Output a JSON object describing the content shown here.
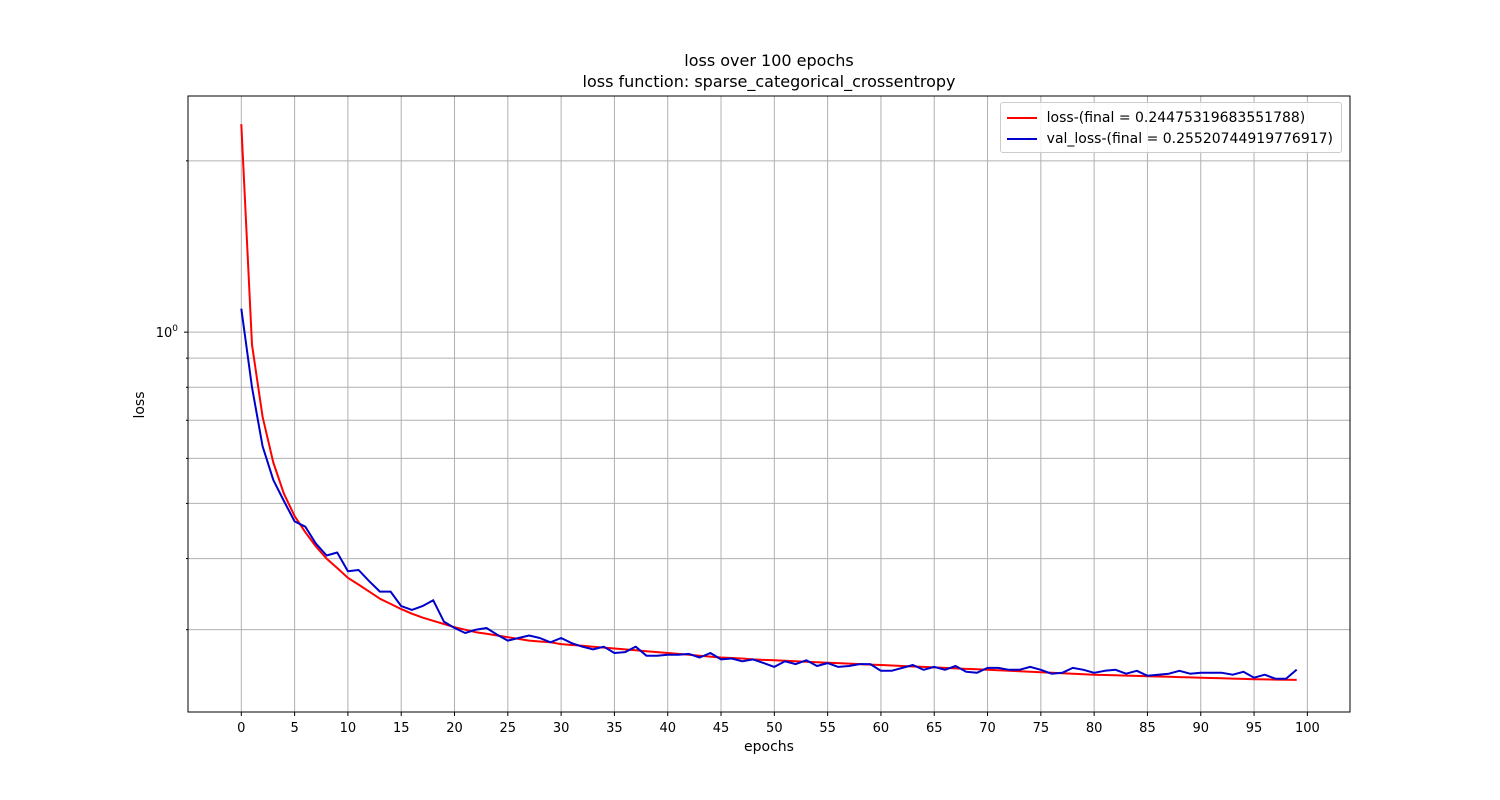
{
  "chart_data": {
    "type": "line",
    "title": "loss over 100 epochs",
    "subtitle": "loss function: sparse_categorical_crossentropy",
    "xlabel": "epochs",
    "ylabel": "loss",
    "xlim": [
      -5,
      104
    ],
    "ylim": [
      0.215,
      2.6
    ],
    "y_scale": "log",
    "grid": true,
    "legend_position": "top-right",
    "x_ticks": [
      0,
      5,
      10,
      15,
      20,
      25,
      30,
      35,
      40,
      45,
      50,
      55,
      60,
      65,
      70,
      75,
      80,
      85,
      90,
      95,
      100
    ],
    "y_major_ticks": [
      1
    ],
    "y_major_tick_labels": [
      "10^0"
    ],
    "y_minor_ticks": [
      0.3,
      0.4,
      0.5,
      0.6,
      0.7,
      0.8,
      0.9,
      2
    ],
    "x": [
      0,
      1,
      2,
      3,
      4,
      5,
      6,
      7,
      8,
      9,
      10,
      11,
      12,
      13,
      14,
      15,
      16,
      17,
      18,
      19,
      20,
      21,
      22,
      23,
      24,
      25,
      26,
      27,
      28,
      29,
      30,
      31,
      32,
      33,
      34,
      35,
      36,
      37,
      38,
      39,
      40,
      41,
      42,
      43,
      44,
      45,
      46,
      47,
      48,
      49,
      50,
      51,
      52,
      53,
      54,
      55,
      56,
      57,
      58,
      59,
      60,
      61,
      62,
      63,
      64,
      65,
      66,
      67,
      68,
      69,
      70,
      71,
      72,
      73,
      74,
      75,
      76,
      77,
      78,
      79,
      80,
      81,
      82,
      83,
      84,
      85,
      86,
      87,
      88,
      89,
      90,
      91,
      92,
      93,
      94,
      95,
      96,
      97,
      98,
      99
    ],
    "series": [
      {
        "name": "loss-(final = 0.24475319683551788)",
        "color": "#ff0000",
        "values": [
          2.32,
          0.95,
          0.71,
          0.59,
          0.52,
          0.475,
          0.445,
          0.42,
          0.4,
          0.385,
          0.37,
          0.36,
          0.35,
          0.34,
          0.333,
          0.326,
          0.32,
          0.315,
          0.311,
          0.307,
          0.303,
          0.3,
          0.297,
          0.295,
          0.293,
          0.291,
          0.289,
          0.287,
          0.286,
          0.285,
          0.283,
          0.282,
          0.281,
          0.28,
          0.279,
          0.278,
          0.277,
          0.276,
          0.275,
          0.274,
          0.273,
          0.272,
          0.271,
          0.27,
          0.269,
          0.268,
          0.2675,
          0.267,
          0.266,
          0.2655,
          0.265,
          0.2645,
          0.264,
          0.2635,
          0.263,
          0.2625,
          0.262,
          0.2615,
          0.261,
          0.2605,
          0.26,
          0.2595,
          0.259,
          0.2585,
          0.258,
          0.2575,
          0.257,
          0.2565,
          0.256,
          0.2555,
          0.255,
          0.2545,
          0.254,
          0.2535,
          0.253,
          0.2525,
          0.252,
          0.2515,
          0.251,
          0.2505,
          0.25,
          0.2497,
          0.2494,
          0.2491,
          0.2488,
          0.2485,
          0.2482,
          0.2479,
          0.2476,
          0.2473,
          0.247,
          0.2467,
          0.2464,
          0.2461,
          0.2458,
          0.2455,
          0.2453,
          0.2451,
          0.2449,
          0.2448
        ]
      },
      {
        "name": "val_loss-(final = 0.25520744919776917)",
        "color": "#0000cc",
        "values": [
          1.1,
          0.8,
          0.63,
          0.55,
          0.505,
          0.465,
          0.455,
          0.425,
          0.405,
          0.41,
          0.38,
          0.382,
          0.365,
          0.35,
          0.35,
          0.33,
          0.325,
          0.33,
          0.338,
          0.31,
          0.302,
          0.296,
          0.3,
          0.302,
          0.294,
          0.287,
          0.29,
          0.293,
          0.29,
          0.285,
          0.29,
          0.284,
          0.28,
          0.277,
          0.28,
          0.273,
          0.274,
          0.28,
          0.27,
          0.27,
          0.271,
          0.271,
          0.272,
          0.268,
          0.273,
          0.266,
          0.267,
          0.264,
          0.266,
          0.262,
          0.258,
          0.264,
          0.261,
          0.265,
          0.259,
          0.262,
          0.258,
          0.259,
          0.261,
          0.261,
          0.254,
          0.254,
          0.257,
          0.26,
          0.255,
          0.258,
          0.255,
          0.259,
          0.253,
          0.252,
          0.257,
          0.257,
          0.255,
          0.255,
          0.258,
          0.255,
          0.251,
          0.252,
          0.257,
          0.255,
          0.252,
          0.254,
          0.255,
          0.251,
          0.254,
          0.249,
          0.25,
          0.251,
          0.254,
          0.251,
          0.252,
          0.252,
          0.252,
          0.25,
          0.253,
          0.247,
          0.25,
          0.246,
          0.246,
          0.2552
        ]
      }
    ]
  }
}
